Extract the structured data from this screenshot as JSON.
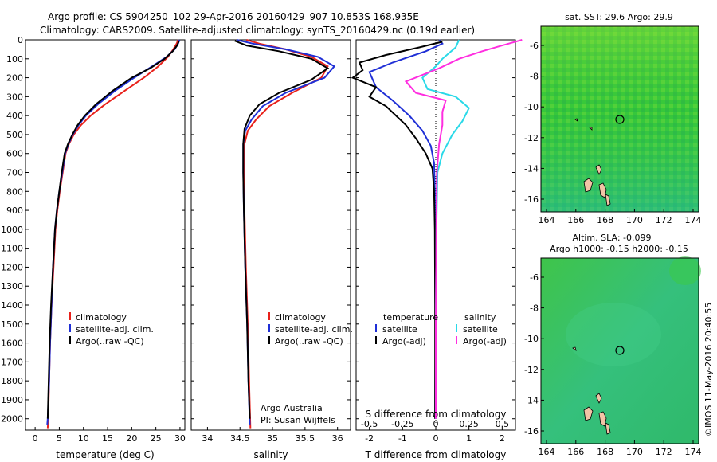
{
  "header": {
    "title_line1": "Argo profile: CS 5904250_102 29-Apr-2016 20160429_907 10.853S 168.935E",
    "title_line2": "Climatology: CARS2009. Satellite-adjusted climatology: synTS_20160429.nc (0.19d earlier)"
  },
  "footer": {
    "timestamp": "©IMOS 11-May-2016 20:40:55"
  },
  "colors": {
    "climatology": "#e8211b",
    "satellite": "#1f2fd6",
    "argo": "#000000",
    "sat_salinity": "#29d9e8",
    "argo_salinity": "#ff2ee0",
    "ocean": "#2fbf3a",
    "land": "#f2c4a6"
  },
  "chart_data": [
    {
      "type": "line",
      "xlabel": "temperature (deg C)",
      "ylabel": "",
      "xlim": [
        -2,
        31
      ],
      "ylim": [
        2060,
        0
      ],
      "xticks": [
        "0",
        "5",
        "10",
        "15",
        "20",
        "25",
        "30"
      ],
      "yticks": [
        "0",
        "100",
        "200",
        "300",
        "400",
        "500",
        "600",
        "700",
        "800",
        "900",
        "1000",
        "1100",
        "1200",
        "1300",
        "1400",
        "1500",
        "1600",
        "1700",
        "1800",
        "1900",
        "2000"
      ],
      "legend": [
        "climatology",
        "satellite-adj. clim.",
        "Argo(..raw -QC)"
      ],
      "series": [
        {
          "name": "climatology",
          "color": "#e8211b",
          "points": [
            [
              29.6,
              0
            ],
            [
              29.3,
              20
            ],
            [
              28.6,
              50
            ],
            [
              27.5,
              90
            ],
            [
              25.5,
              140
            ],
            [
              22.5,
              200
            ],
            [
              18.5,
              270
            ],
            [
              14.5,
              340
            ],
            [
              11.5,
              400
            ],
            [
              9.5,
              450
            ],
            [
              8.0,
              500
            ],
            [
              7.0,
              550
            ],
            [
              6.3,
              600
            ],
            [
              5.7,
              700
            ],
            [
              5.1,
              800
            ],
            [
              4.6,
              900
            ],
            [
              4.2,
              1000
            ],
            [
              3.8,
              1200
            ],
            [
              3.4,
              1400
            ],
            [
              3.1,
              1600
            ],
            [
              2.9,
              1800
            ],
            [
              2.7,
              2000
            ],
            [
              2.6,
              2050
            ]
          ]
        },
        {
          "name": "satellite-adj. clim.",
          "color": "#1f2fd6",
          "points": [
            [
              29.9,
              0
            ],
            [
              29.6,
              20
            ],
            [
              28.9,
              50
            ],
            [
              27.2,
              90
            ],
            [
              24.2,
              140
            ],
            [
              20.5,
              200
            ],
            [
              16.5,
              270
            ],
            [
              13.0,
              340
            ],
            [
              10.5,
              400
            ],
            [
              9.0,
              450
            ],
            [
              7.8,
              500
            ],
            [
              6.9,
              550
            ],
            [
              6.2,
              600
            ],
            [
              5.6,
              700
            ],
            [
              5.0,
              800
            ],
            [
              4.5,
              900
            ],
            [
              4.1,
              1000
            ],
            [
              3.7,
              1200
            ],
            [
              3.4,
              1400
            ],
            [
              3.1,
              1600
            ],
            [
              2.9,
              1800
            ],
            [
              2.6,
              2000
            ],
            [
              2.5,
              2030
            ]
          ]
        },
        {
          "name": "Argo(..raw -QC)",
          "color": "#000000",
          "points": [
            [
              29.8,
              5
            ],
            [
              29.4,
              30
            ],
            [
              28.5,
              60
            ],
            [
              26.8,
              100
            ],
            [
              23.8,
              150
            ],
            [
              20.0,
              200
            ],
            [
              16.0,
              270
            ],
            [
              12.6,
              340
            ],
            [
              10.3,
              400
            ],
            [
              8.8,
              450
            ],
            [
              7.7,
              500
            ],
            [
              6.8,
              550
            ],
            [
              6.1,
              600
            ],
            [
              5.5,
              700
            ],
            [
              5.0,
              800
            ],
            [
              4.5,
              900
            ],
            [
              4.1,
              1000
            ],
            [
              3.7,
              1200
            ],
            [
              3.3,
              1400
            ],
            [
              3.0,
              1600
            ],
            [
              2.8,
              1800
            ],
            [
              2.6,
              2000
            ]
          ]
        }
      ]
    },
    {
      "type": "line",
      "xlabel": "salinity",
      "ylabel": "",
      "xlim": [
        33.75,
        36.2
      ],
      "ylim": [
        2060,
        0
      ],
      "xticks": [
        "34",
        "34.5",
        "35",
        "35.5",
        "36"
      ],
      "legend": [
        "climatology",
        "satellite-adj. clim.",
        "Argo(..raw -QC)"
      ],
      "annotation": [
        "Argo Australia",
        "PI: Susan Wijffels"
      ],
      "series": [
        {
          "name": "climatology",
          "color": "#e8211b",
          "points": [
            [
              34.6,
              0
            ],
            [
              34.8,
              20
            ],
            [
              35.2,
              50
            ],
            [
              35.6,
              90
            ],
            [
              35.85,
              140
            ],
            [
              35.75,
              200
            ],
            [
              35.3,
              280
            ],
            [
              34.95,
              350
            ],
            [
              34.75,
              420
            ],
            [
              34.62,
              480
            ],
            [
              34.57,
              550
            ],
            [
              34.56,
              700
            ],
            [
              34.57,
              900
            ],
            [
              34.59,
              1200
            ],
            [
              34.62,
              1500
            ],
            [
              34.64,
              1800
            ],
            [
              34.66,
              2050
            ]
          ]
        },
        {
          "name": "satellite-adj. clim.",
          "color": "#1f2fd6",
          "points": [
            [
              34.45,
              0
            ],
            [
              34.7,
              20
            ],
            [
              35.2,
              50
            ],
            [
              35.7,
              90
            ],
            [
              35.95,
              140
            ],
            [
              35.8,
              200
            ],
            [
              35.2,
              280
            ],
            [
              34.85,
              350
            ],
            [
              34.68,
              420
            ],
            [
              34.58,
              480
            ],
            [
              34.55,
              550
            ],
            [
              34.55,
              700
            ],
            [
              34.56,
              900
            ],
            [
              34.58,
              1200
            ],
            [
              34.61,
              1500
            ],
            [
              34.63,
              1800
            ],
            [
              34.65,
              2030
            ]
          ]
        },
        {
          "name": "Argo(..raw -QC)",
          "color": "#000000",
          "points": [
            [
              34.42,
              5
            ],
            [
              34.6,
              30
            ],
            [
              35.1,
              60
            ],
            [
              35.6,
              100
            ],
            [
              35.85,
              150
            ],
            [
              35.6,
              210
            ],
            [
              35.1,
              280
            ],
            [
              34.8,
              340
            ],
            [
              34.65,
              400
            ],
            [
              34.57,
              470
            ],
            [
              34.55,
              550
            ],
            [
              34.55,
              700
            ],
            [
              34.56,
              900
            ],
            [
              34.58,
              1200
            ],
            [
              34.61,
              1500
            ],
            [
              34.63,
              1800
            ],
            [
              34.65,
              2000
            ]
          ]
        }
      ]
    },
    {
      "type": "line",
      "xlabel": "T difference from climatology",
      "x2label": "S difference from climatology",
      "xlim": [
        -2.4,
        2.4
      ],
      "ylim": [
        2060,
        0
      ],
      "xticks": [
        "-2",
        "-1",
        "0",
        "1",
        "2"
      ],
      "x2ticks": [
        "-0.5",
        "-0.25",
        "0",
        "0.25",
        "0.5"
      ],
      "legend_groups": [
        {
          "title": "temperature",
          "entries": [
            "satellite",
            "Argo(-adj)"
          ]
        },
        {
          "title": "salinity",
          "entries": [
            "satellite",
            "Argo(-adj)"
          ]
        }
      ],
      "series": [
        {
          "name": "T satellite",
          "color": "#1f2fd6",
          "points": [
            [
              0.1,
              0
            ],
            [
              0.2,
              20
            ],
            [
              -0.3,
              60
            ],
            [
              -1.3,
              120
            ],
            [
              -2.0,
              170
            ],
            [
              -1.8,
              250
            ],
            [
              -1.3,
              320
            ],
            [
              -0.8,
              400
            ],
            [
              -0.4,
              480
            ],
            [
              -0.15,
              560
            ],
            [
              -0.05,
              650
            ],
            [
              -0.03,
              800
            ],
            [
              -0.02,
              1200
            ],
            [
              -0.01,
              1600
            ],
            [
              -0.02,
              2000
            ]
          ]
        },
        {
          "name": "T Argo(-adj)",
          "color": "#000000",
          "points": [
            [
              0.2,
              10
            ],
            [
              -0.5,
              40
            ],
            [
              -1.5,
              80
            ],
            [
              -2.3,
              120
            ],
            [
              -2.2,
              160
            ],
            [
              -2.5,
              200
            ],
            [
              -1.8,
              250
            ],
            [
              -2.0,
              300
            ],
            [
              -1.5,
              350
            ],
            [
              -1.2,
              400
            ],
            [
              -0.9,
              450
            ],
            [
              -0.6,
              520
            ],
            [
              -0.3,
              600
            ],
            [
              -0.1,
              680
            ],
            [
              -0.05,
              800
            ],
            [
              -0.03,
              1000
            ],
            [
              -0.02,
              1400
            ],
            [
              -0.02,
              1800
            ],
            [
              -0.02,
              2000
            ]
          ]
        },
        {
          "name": "S satellite",
          "color": "#29d9e8",
          "points": [
            [
              0.7,
              0
            ],
            [
              0.6,
              40
            ],
            [
              0.2,
              100
            ],
            [
              0.0,
              140
            ],
            [
              -0.4,
              200
            ],
            [
              -0.25,
              260
            ],
            [
              0.6,
              300
            ],
            [
              1.0,
              360
            ],
            [
              0.8,
              430
            ],
            [
              0.5,
              500
            ],
            [
              0.2,
              600
            ],
            [
              0.05,
              700
            ],
            [
              0.02,
              1000
            ],
            [
              0.0,
              1500
            ],
            [
              0.0,
              2000
            ]
          ]
        },
        {
          "name": "S Argo(-adj)",
          "color": "#ff2ee0",
          "points": [
            [
              2.6,
              0
            ],
            [
              2.0,
              30
            ],
            [
              1.4,
              60
            ],
            [
              0.7,
              100
            ],
            [
              0.1,
              150
            ],
            [
              -0.9,
              220
            ],
            [
              -0.6,
              280
            ],
            [
              0.3,
              320
            ],
            [
              0.2,
              380
            ],
            [
              0.2,
              450
            ],
            [
              0.1,
              550
            ],
            [
              0.03,
              700
            ],
            [
              0.02,
              1000
            ],
            [
              0.0,
              1500
            ],
            [
              0.0,
              2000
            ]
          ]
        }
      ]
    }
  ],
  "maps": [
    {
      "title": "sat. SST: 29.6  Argo: 29.9",
      "xticks": [
        "164",
        "166",
        "168",
        "170",
        "172",
        "174"
      ],
      "yticks": [
        "-6",
        "-8",
        "-10",
        "-12",
        "-14",
        "-16"
      ],
      "argo_position": {
        "lon": 168.935,
        "lat": -10.853
      }
    },
    {
      "title": "Altim. SLA: -0.099",
      "subtitle": "Argo h1000: -0.15  h2000: -0.15",
      "xticks": [
        "164",
        "166",
        "168",
        "170",
        "172",
        "174"
      ],
      "yticks": [
        "-6",
        "-8",
        "-10",
        "-12",
        "-14",
        "-16"
      ],
      "argo_position": {
        "lon": 168.935,
        "lat": -10.853
      }
    }
  ]
}
